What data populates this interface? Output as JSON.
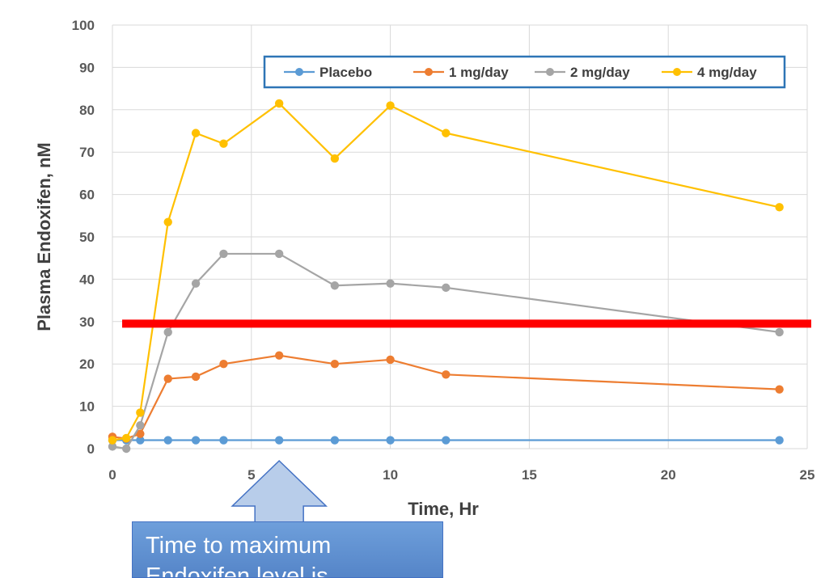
{
  "chart_data": {
    "type": "line",
    "xlabel": "Time, Hr",
    "ylabel": "Plasma Endoxifen, nM",
    "xlim": [
      0,
      25
    ],
    "ylim": [
      0,
      100
    ],
    "xticks": [
      "0",
      "5",
      "10",
      "15",
      "20",
      "25"
    ],
    "yticks": [
      "0",
      "10",
      "20",
      "30",
      "40",
      "50",
      "60",
      "70",
      "80",
      "90",
      "100"
    ],
    "grid": "vertical and horizontal",
    "legend_position": "top-right",
    "x": [
      0,
      0.5,
      1,
      2,
      3,
      4,
      6,
      8,
      10,
      12,
      24
    ],
    "series": [
      {
        "name": "Placebo",
        "color": "#5b9bd5",
        "values": [
          2,
          2,
          2,
          2,
          2,
          2,
          2,
          2,
          2,
          2,
          2
        ]
      },
      {
        "name": "1 mg/day",
        "color": "#ed7d31",
        "values": [
          2.8,
          2.4,
          3.5,
          16.5,
          17,
          20,
          22,
          20,
          21,
          17.5,
          14
        ]
      },
      {
        "name": "2 mg/day",
        "color": "#a5a5a5",
        "values": [
          0.5,
          0,
          5.5,
          27.5,
          39,
          46,
          46,
          38.5,
          39,
          38,
          27.5
        ]
      },
      {
        "name": "4 mg/day",
        "color": "#ffc000",
        "values": [
          2,
          2.5,
          8.5,
          53.5,
          74.5,
          72,
          81.5,
          68.5,
          81,
          74.5,
          57
        ]
      }
    ],
    "reference_line": {
      "y": 29.5,
      "color": "#ff0000"
    }
  },
  "callout": {
    "text": "Time to maximum Endoxifen level is",
    "arrow_at_x": 6,
    "color": "#5b8fd4"
  }
}
